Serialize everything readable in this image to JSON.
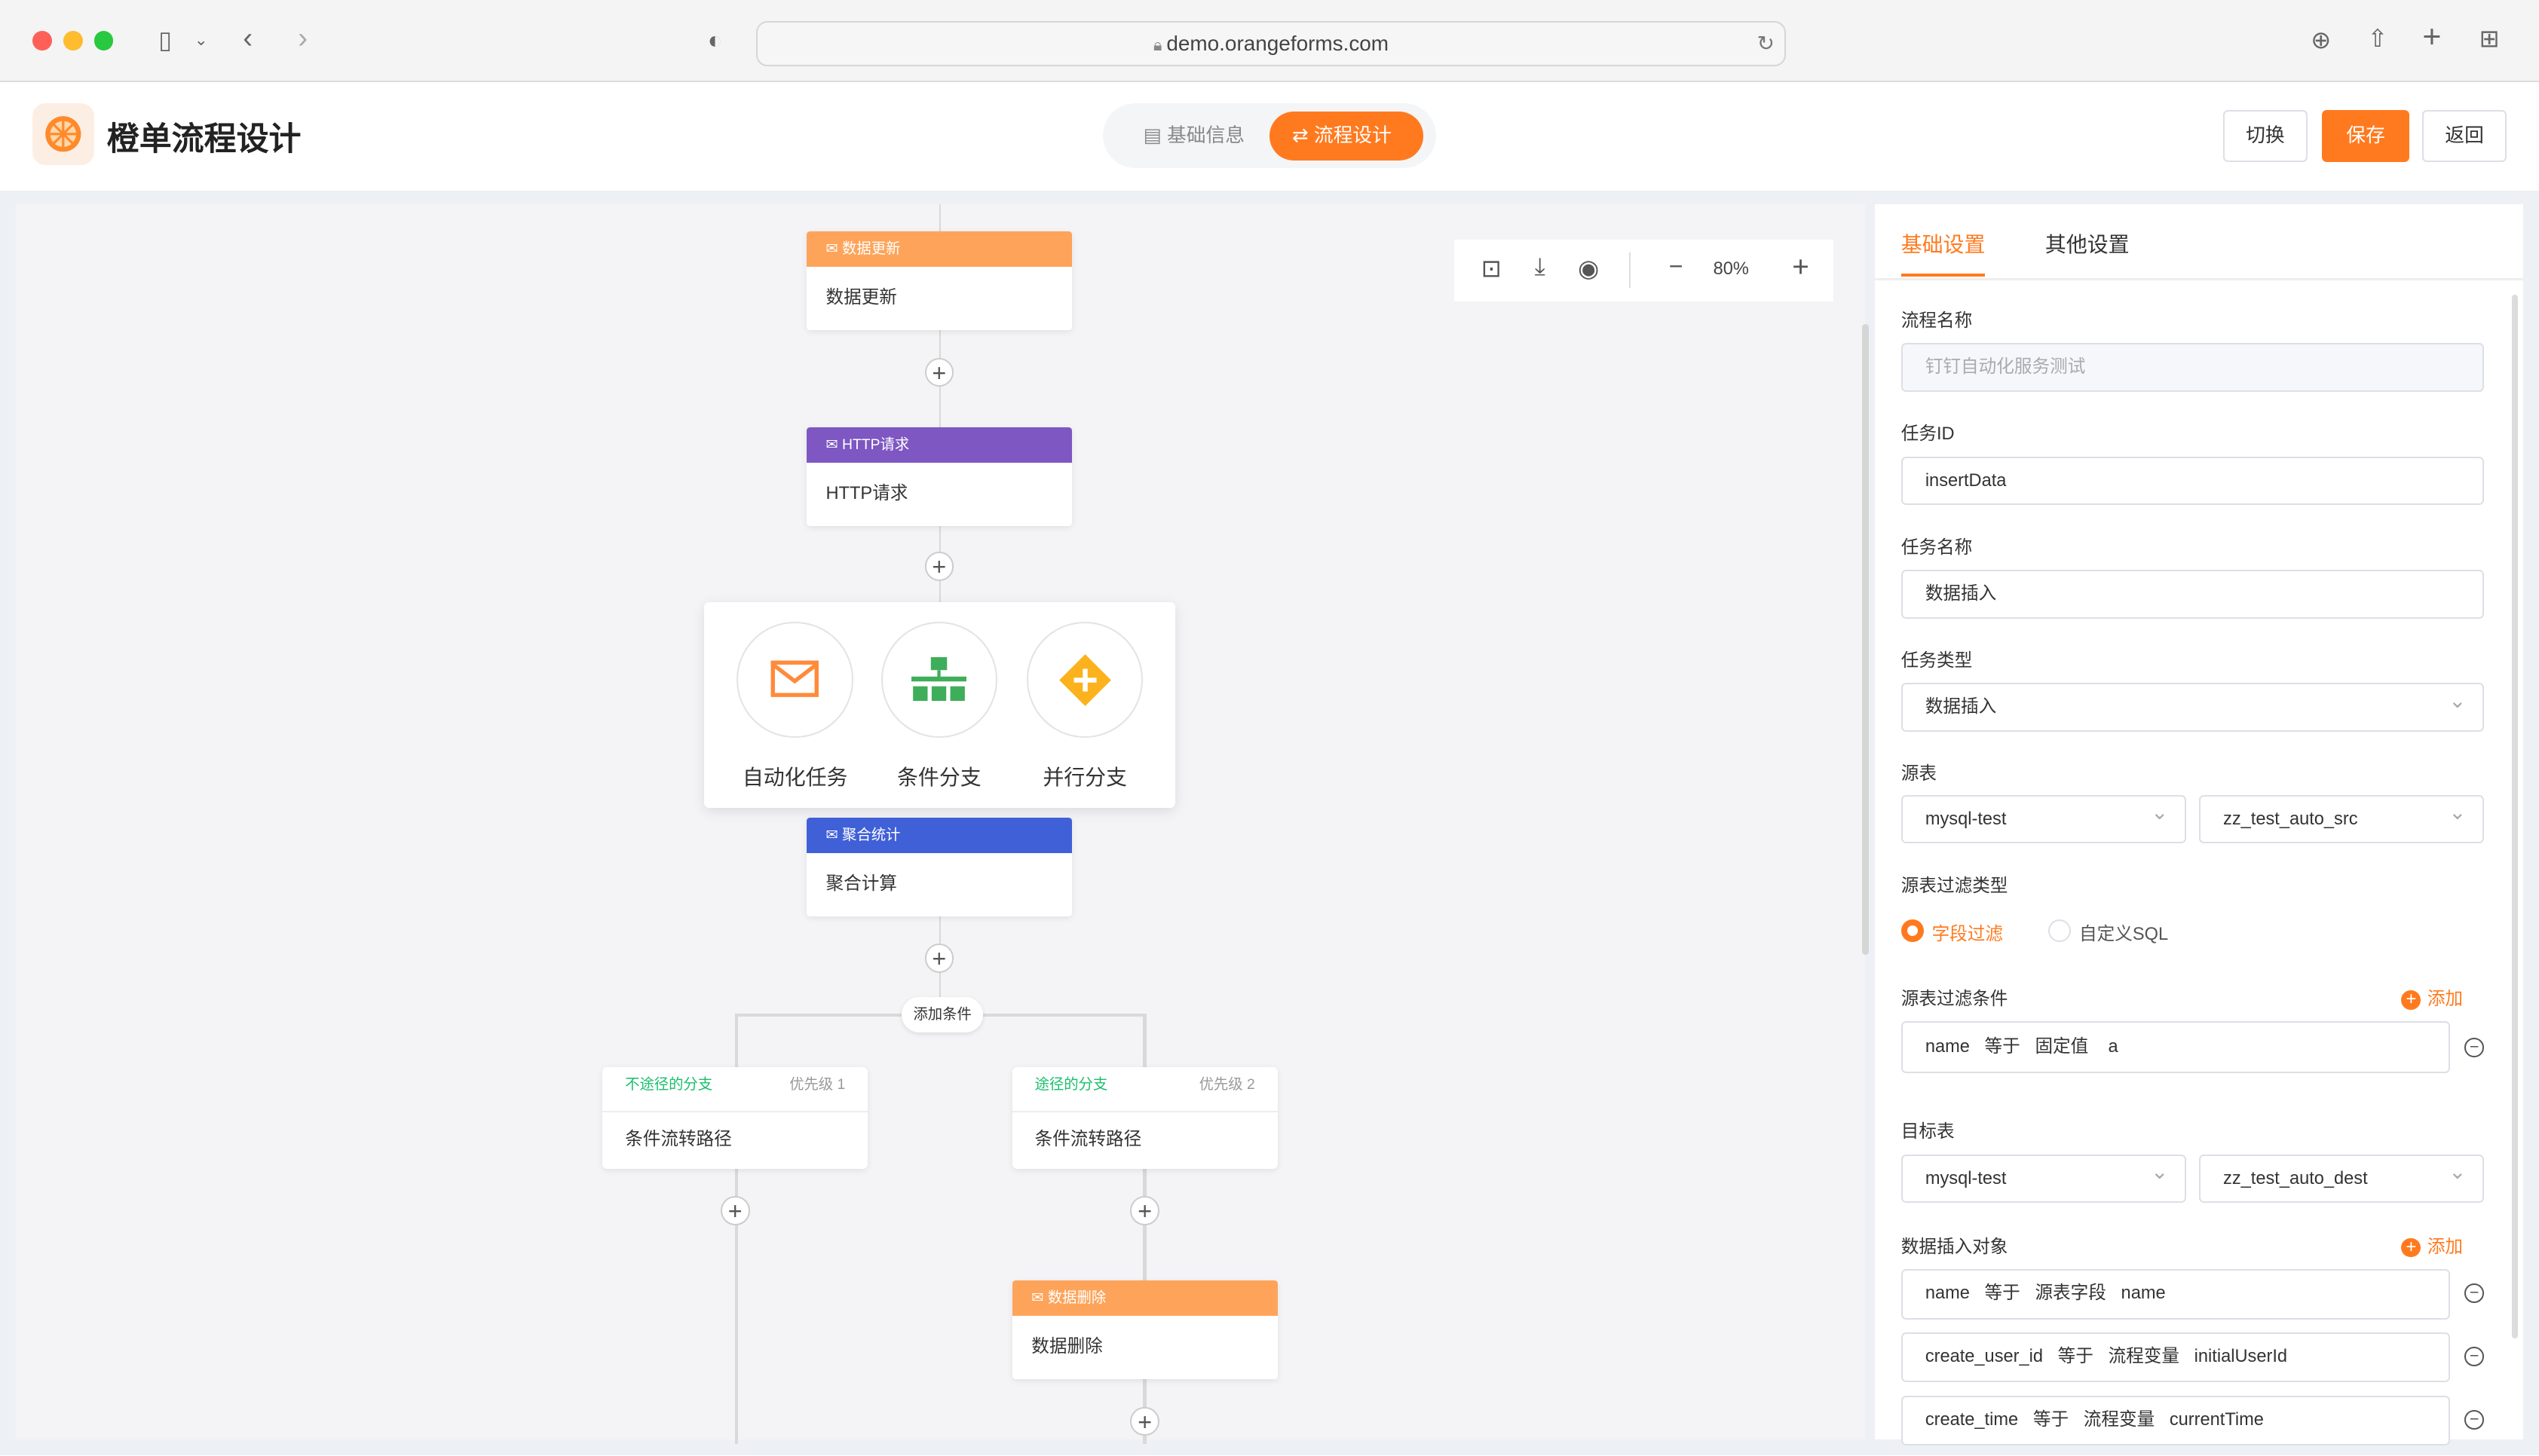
{
  "browser": {
    "url": "demo.orangeforms.com"
  },
  "header": {
    "title": "橙单流程设计",
    "tabs": [
      {
        "label": "基础信息",
        "active": false
      },
      {
        "label": "流程设计",
        "active": true
      }
    ],
    "buttons": {
      "switch": "切换",
      "save": "保存",
      "back": "返回"
    }
  },
  "colors": {
    "accent": "#ff7a1f",
    "update": "#fda45a",
    "http": "#7e57c2",
    "aggregate": "#4060d8",
    "branch": "#19be6b"
  },
  "toolbar": {
    "zoom": "80%",
    "icons": [
      "folder-plus-icon",
      "download-icon",
      "eye-icon",
      "zoom-out-icon",
      "zoom-in-icon"
    ]
  },
  "flow": {
    "nodes": [
      {
        "type": "数据更新",
        "name": "数据更新"
      },
      {
        "type": "HTTP请求",
        "name": "HTTP请求"
      },
      {
        "type": "聚合统计",
        "name": "聚合计算"
      },
      {
        "type": "数据删除",
        "name": "数据删除"
      }
    ],
    "picker": [
      {
        "label": "自动化任务"
      },
      {
        "label": "条件分支"
      },
      {
        "label": "并行分支"
      }
    ],
    "add_condition": "添加条件",
    "branches": [
      {
        "name": "不途径的分支",
        "priority": "优先级 1",
        "body": "条件流转路径"
      },
      {
        "name": "途径的分支",
        "priority": "优先级 2",
        "body": "条件流转路径"
      }
    ]
  },
  "panel": {
    "tabs": [
      {
        "label": "基础设置",
        "active": true
      },
      {
        "label": "其他设置",
        "active": false
      }
    ],
    "flow_name": {
      "label": "流程名称",
      "placeholder": "钉钉自动化服务测试"
    },
    "task_id": {
      "label": "任务ID",
      "value": "insertData"
    },
    "task_name": {
      "label": "任务名称",
      "value": "数据插入"
    },
    "task_type": {
      "label": "任务类型",
      "value": "数据插入"
    },
    "source": {
      "label": "源表",
      "db": "mysql-test",
      "table": "zz_test_auto_src"
    },
    "filter_type": {
      "label": "源表过滤类型",
      "options": [
        "字段过滤",
        "自定义SQL"
      ],
      "selected": "字段过滤"
    },
    "filter_cond": {
      "label": "源表过滤条件",
      "add": "添加",
      "rows": [
        "name   等于   固定值    a"
      ]
    },
    "target": {
      "label": "目标表",
      "db": "mysql-test",
      "table": "zz_test_auto_dest"
    },
    "insert_obj": {
      "label": "数据插入对象",
      "add": "添加",
      "rows": [
        "name   等于   源表字段   name",
        "create_user_id   等于   流程变量   initialUserId",
        "create_time   等于   流程变量   currentTime"
      ]
    }
  }
}
